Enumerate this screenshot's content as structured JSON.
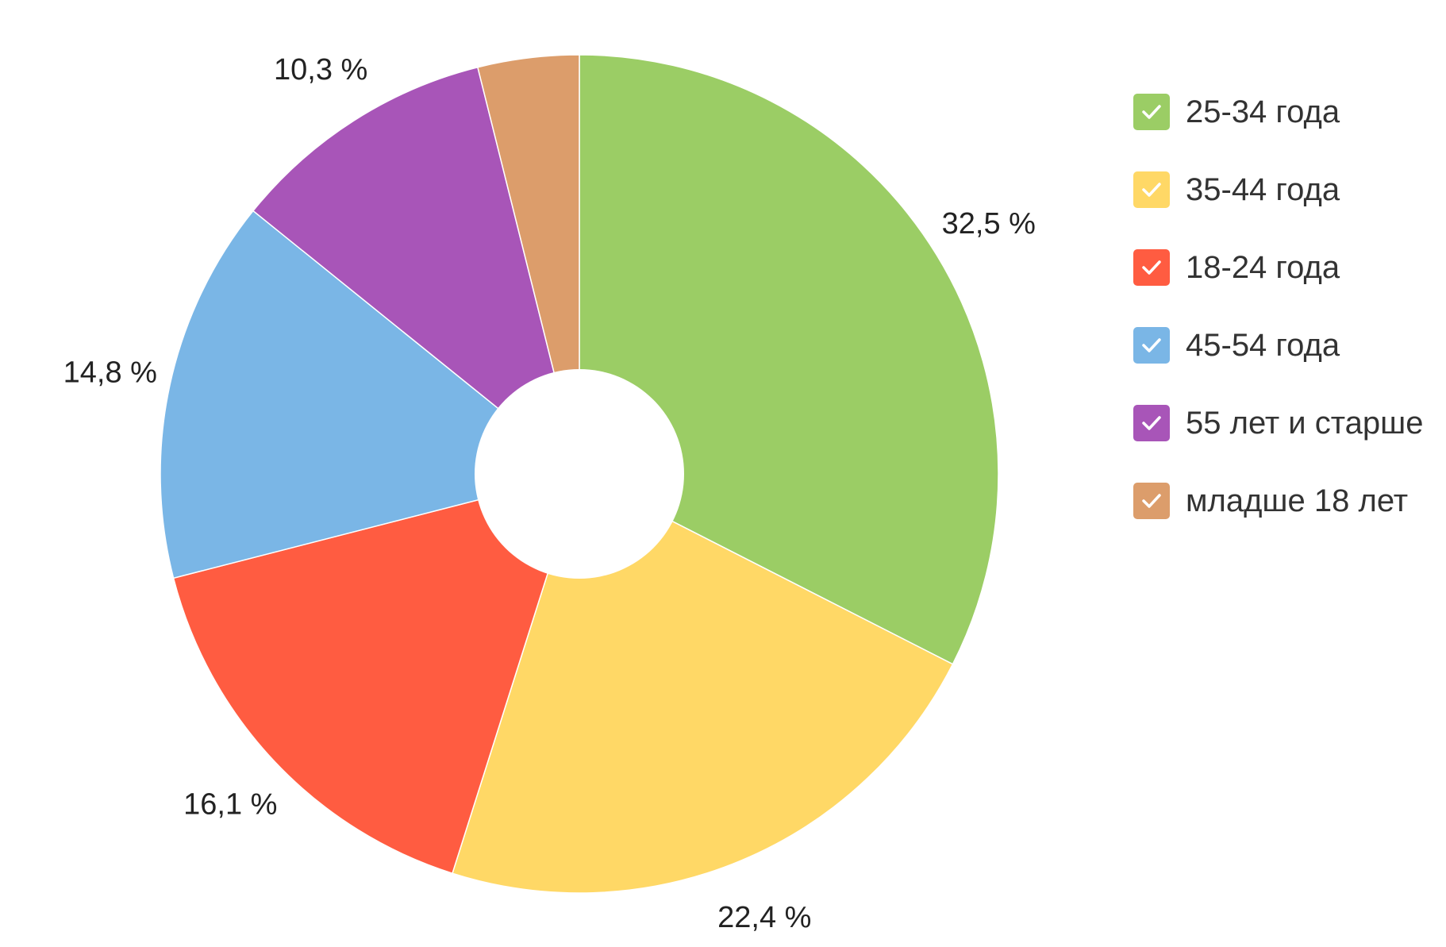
{
  "chart_data": {
    "type": "pie",
    "categories": [
      "25-34 года",
      "35-44 года",
      "18-24 года",
      "45-54 года",
      "55 лет и старше",
      "младше 18 лет"
    ],
    "values": [
      32.5,
      22.4,
      16.1,
      14.8,
      10.3,
      3.9
    ],
    "value_labels": [
      "32,5 %",
      "22,4 %",
      "16,1 %",
      "14,8 %",
      "10,3 %",
      ""
    ],
    "colors": [
      "#9bcd65",
      "#ffd866",
      "#ff5c41",
      "#7ab6e6",
      "#a855b8",
      "#dc9d6b"
    ],
    "donut": true,
    "start_angle_deg": 0,
    "direction": "clockwise",
    "legend_placement": "right"
  },
  "legend": {
    "items": [
      {
        "label": "25-34 года",
        "color": "#9bcd65",
        "checked": true,
        "icon": "check-icon"
      },
      {
        "label": "35-44 года",
        "color": "#ffd866",
        "checked": true,
        "icon": "check-icon"
      },
      {
        "label": "18-24 года",
        "color": "#ff5c41",
        "checked": true,
        "icon": "check-icon"
      },
      {
        "label": "45-54 года",
        "color": "#7ab6e6",
        "checked": true,
        "icon": "check-icon"
      },
      {
        "label": "55 лет и старше",
        "color": "#a855b8",
        "checked": true,
        "icon": "check-icon"
      },
      {
        "label": "младше 18 лет",
        "color": "#dc9d6b",
        "checked": true,
        "icon": "check-icon"
      }
    ]
  }
}
